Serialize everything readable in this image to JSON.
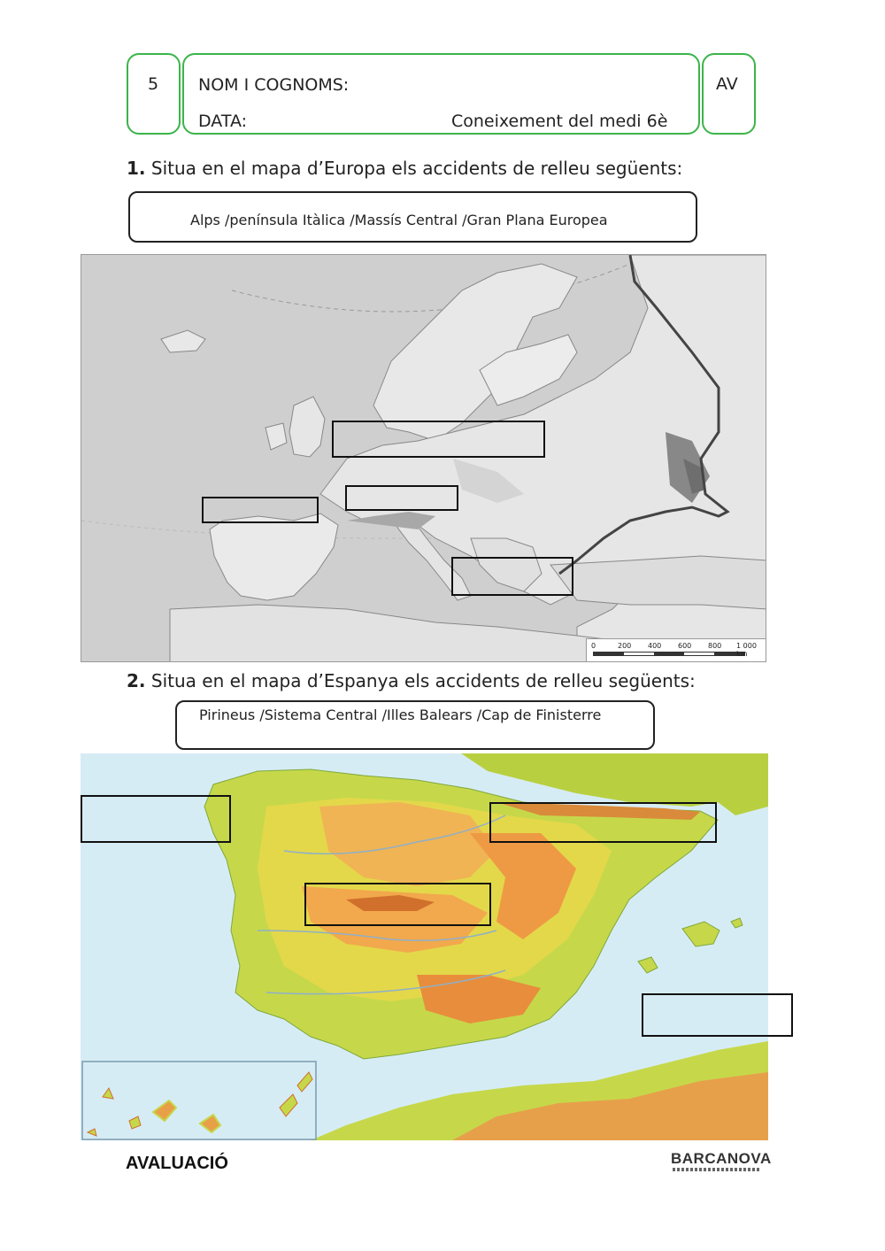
{
  "header": {
    "number": "5",
    "name_label": "NOM I COGNOMS:",
    "date_label": "DATA:",
    "subject": "Coneixement del medi 6è",
    "code": "AV"
  },
  "question1": {
    "number": "1.",
    "text": "Situa en el mapa d’Europa els accidents de relleu següents:",
    "words": "Alps /península Itàlica /Massís Central /Gran Plana Europea"
  },
  "europe_map": {
    "scale_ticks": [
      "0",
      "200",
      "400",
      "600",
      "800",
      "1 000 km"
    ]
  },
  "question2": {
    "number": "2.",
    "text": "Situa en el mapa d’Espanya els accidents de relleu següents:",
    "words": "Pirineus /Sistema Central /Illes Balears /Cap de Finisterre"
  },
  "footer": {
    "label": "AVALUACIÓ",
    "brand": "BARCANOVA"
  },
  "colors": {
    "frame_green": "#3cb44b",
    "sea_grey": "#cfcfcf",
    "land_grey": "#e6e6e6",
    "sea_blue": "#d6ecf5",
    "land_green": "#c6d84a",
    "land_orange": "#f0a24a"
  }
}
